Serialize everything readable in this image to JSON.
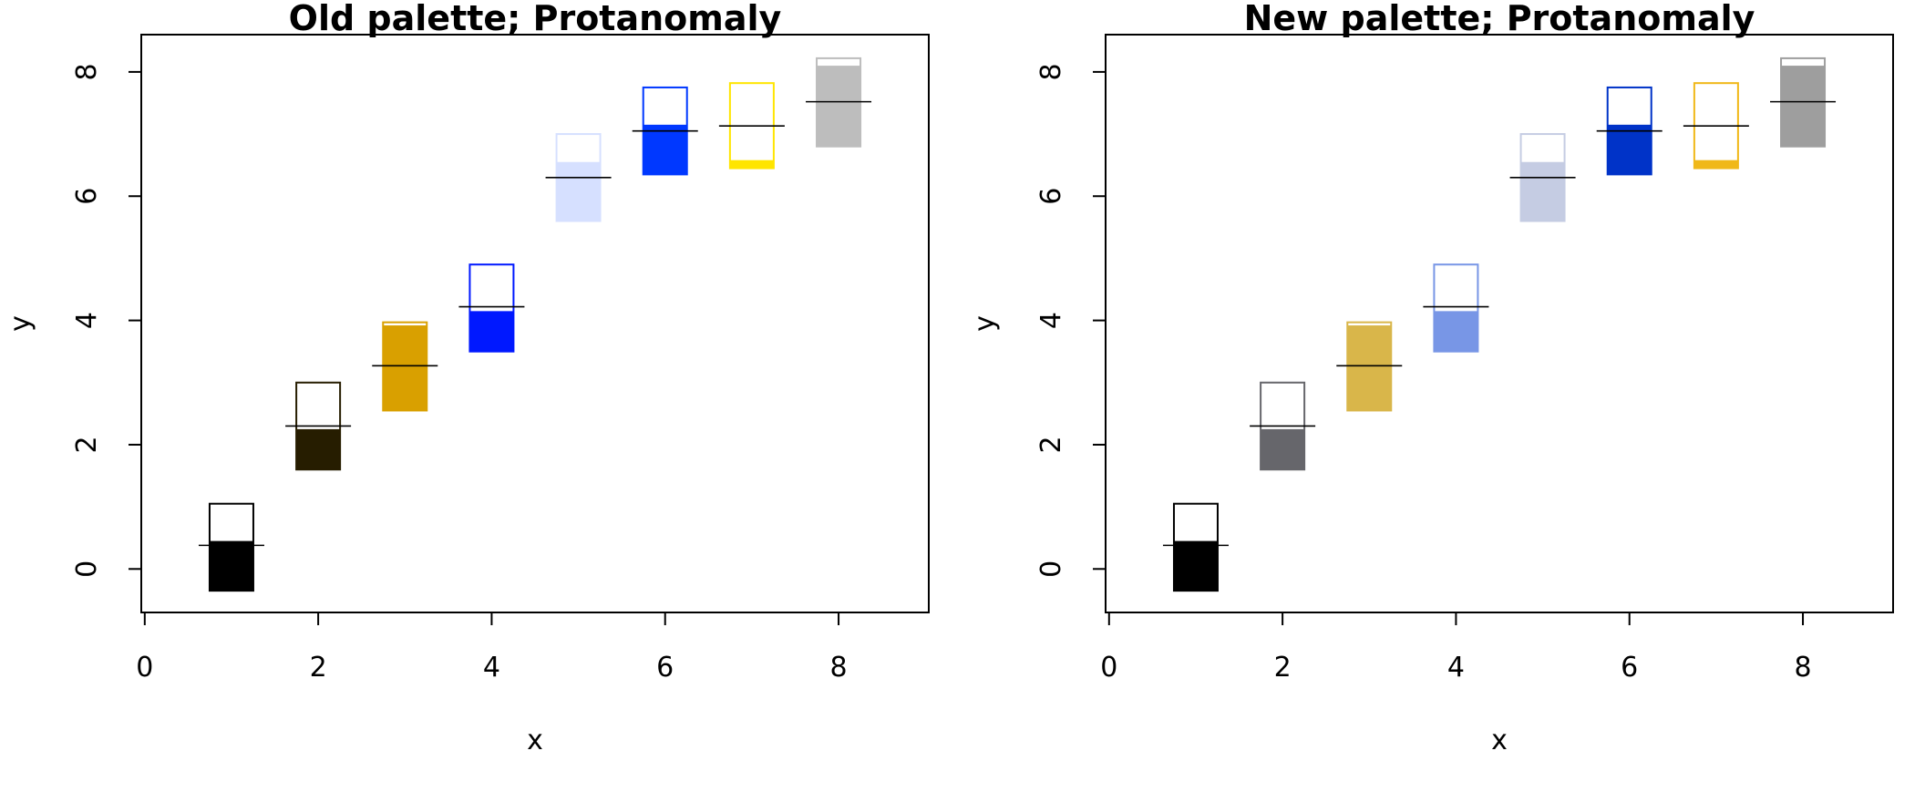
{
  "chart_data": [
    {
      "type": "box",
      "title": "Old palette; Protanomaly",
      "xlabel": "x",
      "ylabel": "y",
      "xlim": [
        -0.04,
        9.04
      ],
      "ylim": [
        -0.7,
        8.6
      ],
      "xticks": [
        0,
        2,
        4,
        6,
        8
      ],
      "yticks": [
        0,
        2,
        4,
        6,
        8
      ],
      "boxes": [
        {
          "x": 1,
          "bottom": -0.35,
          "mid": 0.45,
          "top": 1.05,
          "whisker_y": 0.38,
          "color": "#000000"
        },
        {
          "x": 2,
          "bottom": 1.6,
          "mid": 2.25,
          "top": 3.0,
          "whisker_y": 2.3,
          "color": "#261d00"
        },
        {
          "x": 3,
          "bottom": 2.55,
          "mid": 3.92,
          "top": 3.97,
          "whisker_y": 3.27,
          "color": "#d9a000"
        },
        {
          "x": 4,
          "bottom": 3.5,
          "mid": 4.15,
          "top": 4.9,
          "whisker_y": 4.22,
          "color": "#0018ff"
        },
        {
          "x": 5,
          "bottom": 5.6,
          "mid": 6.55,
          "top": 7.0,
          "whisker_y": 6.3,
          "color": "#d6e0ff"
        },
        {
          "x": 6,
          "bottom": 6.35,
          "mid": 7.15,
          "top": 7.75,
          "whisker_y": 7.05,
          "color": "#0038ff"
        },
        {
          "x": 7,
          "bottom": 6.45,
          "mid": 6.58,
          "top": 7.82,
          "whisker_y": 7.13,
          "color": "#ffe500"
        },
        {
          "x": 8,
          "bottom": 6.8,
          "mid": 8.1,
          "top": 8.22,
          "whisker_y": 7.52,
          "color": "#bdbdbd"
        }
      ]
    },
    {
      "type": "box",
      "title": "New palette; Protanomaly",
      "xlabel": "x",
      "ylabel": "y",
      "xlim": [
        -0.04,
        9.04
      ],
      "ylim": [
        -0.7,
        8.6
      ],
      "xticks": [
        0,
        2,
        4,
        6,
        8
      ],
      "yticks": [
        0,
        2,
        4,
        6,
        8
      ],
      "boxes": [
        {
          "x": 1,
          "bottom": -0.35,
          "mid": 0.45,
          "top": 1.05,
          "whisker_y": 0.38,
          "color": "#000000"
        },
        {
          "x": 2,
          "bottom": 1.6,
          "mid": 2.25,
          "top": 3.0,
          "whisker_y": 2.3,
          "color": "#66666b"
        },
        {
          "x": 3,
          "bottom": 2.55,
          "mid": 3.92,
          "top": 3.97,
          "whisker_y": 3.27,
          "color": "#d9b64a"
        },
        {
          "x": 4,
          "bottom": 3.5,
          "mid": 4.15,
          "top": 4.9,
          "whisker_y": 4.22,
          "color": "#7896e6"
        },
        {
          "x": 5,
          "bottom": 5.6,
          "mid": 6.55,
          "top": 7.0,
          "whisker_y": 6.3,
          "color": "#c5cce3"
        },
        {
          "x": 6,
          "bottom": 6.35,
          "mid": 7.15,
          "top": 7.75,
          "whisker_y": 7.05,
          "color": "#0033c8"
        },
        {
          "x": 7,
          "bottom": 6.45,
          "mid": 6.58,
          "top": 7.82,
          "whisker_y": 7.13,
          "color": "#f0b818"
        },
        {
          "x": 8,
          "bottom": 6.8,
          "mid": 8.1,
          "top": 8.22,
          "whisker_y": 7.52,
          "color": "#9e9e9e"
        }
      ]
    }
  ]
}
